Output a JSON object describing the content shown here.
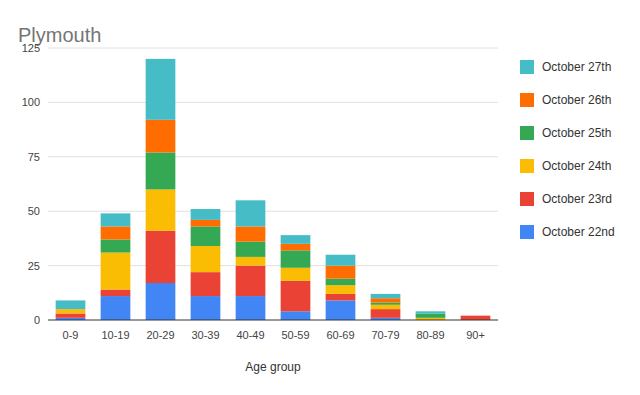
{
  "chart_data": {
    "type": "bar",
    "title": "Plymouth",
    "x_label": "Age group",
    "categories": [
      "0-9",
      "10-19",
      "20-29",
      "30-39",
      "40-49",
      "50-59",
      "60-69",
      "70-79",
      "80-89",
      "90+"
    ],
    "series": [
      {
        "name": "October 22nd",
        "color": "#4285f4",
        "values": [
          1,
          11,
          17,
          11,
          11,
          4,
          9,
          1,
          0,
          0
        ]
      },
      {
        "name": "October 23rd",
        "color": "#ea4335",
        "values": [
          2,
          3,
          24,
          11,
          14,
          14,
          3,
          4,
          0,
          2
        ]
      },
      {
        "name": "October 24th",
        "color": "#fbbc04",
        "values": [
          2,
          17,
          19,
          12,
          4,
          6,
          4,
          2,
          1,
          0
        ]
      },
      {
        "name": "October 25th",
        "color": "#34a853",
        "values": [
          0,
          6,
          17,
          9,
          7,
          8,
          3,
          1,
          2,
          0
        ]
      },
      {
        "name": "October 26th",
        "color": "#ff6d01",
        "values": [
          0,
          6,
          15,
          3,
          7,
          3,
          6,
          2,
          0,
          0
        ]
      },
      {
        "name": "October 27th",
        "color": "#46bdc6",
        "values": [
          4,
          6,
          28,
          5,
          12,
          4,
          5,
          2,
          1,
          0
        ]
      }
    ],
    "ylim": [
      0,
      125
    ],
    "yticks": [
      0,
      25,
      50,
      75,
      100,
      125
    ],
    "grid": true,
    "stacked": true,
    "legend": "right"
  }
}
